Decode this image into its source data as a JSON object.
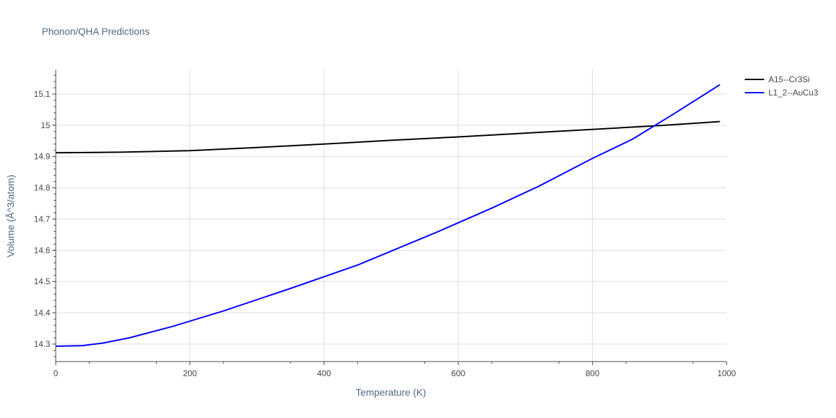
{
  "chart_data": {
    "type": "line",
    "title": "Phonon/QHA Predictions",
    "xlabel": "Temperature (K)",
    "ylabel": "Volume (Å^3/atom)",
    "xlim": [
      0,
      1000
    ],
    "ylim": [
      14.244,
      15.178
    ],
    "x_ticks": [
      0,
      200,
      400,
      600,
      800,
      1000
    ],
    "y_ticks": [
      14.3,
      14.4,
      14.5,
      14.6,
      14.7,
      14.8,
      14.9,
      15.0,
      15.1
    ],
    "y_tick_labels": [
      "14.3",
      "14.4",
      "14.5",
      "14.6",
      "14.7",
      "14.8",
      "14.9",
      "15",
      "15.1"
    ],
    "grid": true,
    "legend_position": "top-right",
    "series": [
      {
        "name": "A15--Cr3Si",
        "color": "#000000",
        "x": [
          0,
          100,
          200,
          300,
          400,
          500,
          600,
          700,
          800,
          900,
          990
        ],
        "y": [
          14.912,
          14.914,
          14.919,
          14.929,
          14.94,
          14.952,
          14.963,
          14.975,
          14.987,
          14.999,
          15.012
        ]
      },
      {
        "name": "L1_2--AuCu3",
        "color": "#0000ff",
        "x": [
          0,
          40,
          70,
          110,
          175,
          250,
          350,
          450,
          570,
          650,
          720,
          800,
          860,
          920,
          990
        ],
        "y": [
          14.293,
          14.295,
          14.303,
          14.32,
          14.357,
          14.406,
          14.478,
          14.553,
          14.66,
          14.735,
          14.805,
          14.894,
          14.956,
          15.035,
          15.13
        ]
      }
    ]
  }
}
